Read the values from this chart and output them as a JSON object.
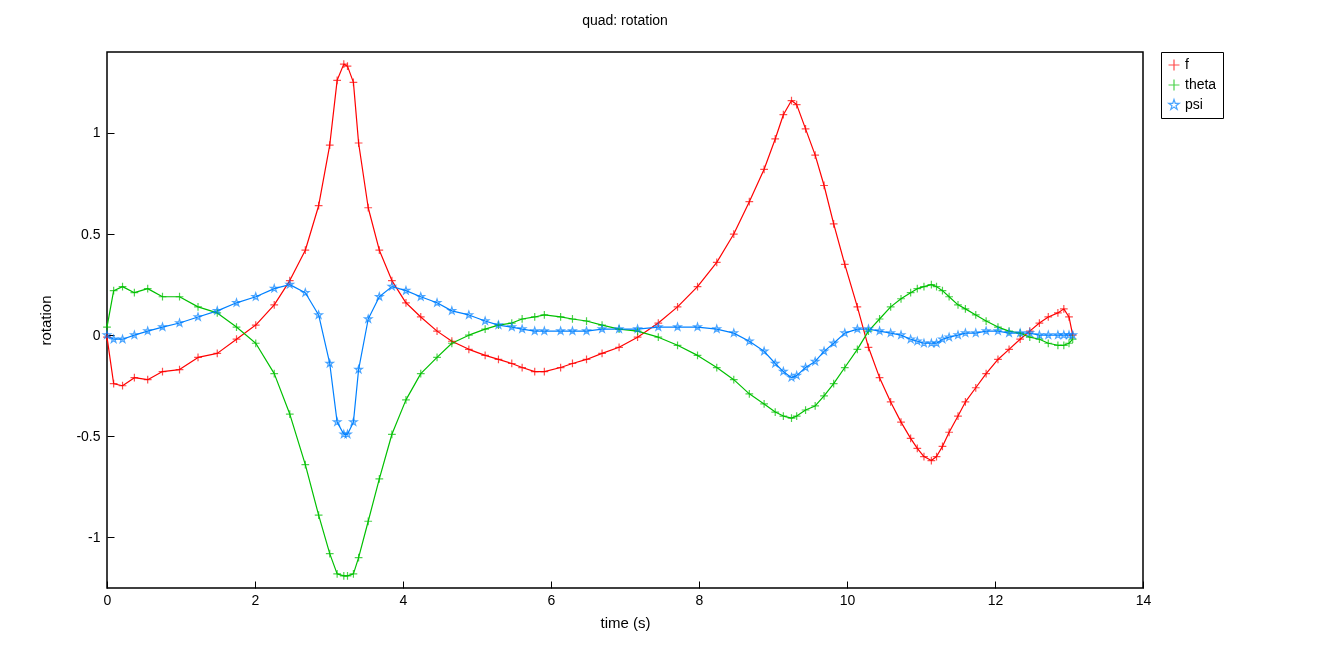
{
  "chart_data": {
    "type": "line",
    "title": "quad: rotation",
    "xlabel": "time (s)",
    "ylabel": "rotation",
    "x": [
      0,
      0.09,
      0.21,
      0.37,
      0.55,
      0.75,
      0.98,
      1.23,
      1.49,
      1.75,
      2.01,
      2.26,
      2.47,
      2.68,
      2.86,
      3.01,
      3.11,
      3.2,
      3.25,
      3.33,
      3.4,
      3.53,
      3.68,
      3.85,
      4.04,
      4.24,
      4.46,
      4.66,
      4.89,
      5.11,
      5.29,
      5.47,
      5.61,
      5.78,
      5.91,
      6.13,
      6.29,
      6.48,
      6.69,
      6.92,
      7.17,
      7.45,
      7.71,
      7.98,
      8.24,
      8.47,
      8.68,
      8.88,
      9.03,
      9.14,
      9.25,
      9.32,
      9.44,
      9.57,
      9.69,
      9.82,
      9.97,
      10.14,
      10.29,
      10.44,
      10.59,
      10.73,
      10.86,
      10.95,
      11.04,
      11.14,
      11.21,
      11.29,
      11.38,
      11.5,
      11.6,
      11.74,
      11.88,
      12.04,
      12.19,
      12.34,
      12.47,
      12.6,
      12.72,
      12.85,
      12.93,
      13,
      13.05
    ],
    "series": [
      {
        "name": "f",
        "color": "#ff0000",
        "marker": "cross",
        "values": [
          -0.01,
          -0.24,
          -0.25,
          -0.21,
          -0.22,
          -0.18,
          -0.17,
          -0.11,
          -0.09,
          -0.02,
          0.05,
          0.15,
          0.27,
          0.42,
          0.64,
          0.94,
          1.26,
          1.34,
          1.33,
          1.25,
          0.95,
          0.63,
          0.42,
          0.27,
          0.16,
          0.09,
          0.02,
          -0.03,
          -0.07,
          -0.1,
          -0.12,
          -0.14,
          -0.16,
          -0.18,
          -0.18,
          -0.16,
          -0.14,
          -0.12,
          -0.09,
          -0.06,
          -0.01,
          0.06,
          0.14,
          0.24,
          0.36,
          0.5,
          0.66,
          0.82,
          0.97,
          1.09,
          1.16,
          1.14,
          1.02,
          0.89,
          0.74,
          0.55,
          0.35,
          0.14,
          -0.06,
          -0.21,
          -0.33,
          -0.43,
          -0.51,
          -0.56,
          -0.6,
          -0.62,
          -0.6,
          -0.55,
          -0.48,
          -0.4,
          -0.33,
          -0.26,
          -0.19,
          -0.12,
          -0.07,
          -0.02,
          0.02,
          0.06,
          0.09,
          0.11,
          0.13,
          0.09,
          0
        ]
      },
      {
        "name": "theta",
        "color": "#00c000",
        "marker": "cross",
        "values": [
          0.04,
          0.22,
          0.24,
          0.21,
          0.23,
          0.19,
          0.19,
          0.14,
          0.11,
          0.04,
          -0.04,
          -0.19,
          -0.39,
          -0.64,
          -0.89,
          -1.08,
          -1.18,
          -1.19,
          -1.19,
          -1.18,
          -1.1,
          -0.92,
          -0.71,
          -0.49,
          -0.32,
          -0.19,
          -0.11,
          -0.04,
          0,
          0.03,
          0.05,
          0.06,
          0.08,
          0.09,
          0.1,
          0.09,
          0.08,
          0.07,
          0.05,
          0.03,
          0.02,
          -0.01,
          -0.05,
          -0.1,
          -0.16,
          -0.22,
          -0.29,
          -0.34,
          -0.38,
          -0.4,
          -0.41,
          -0.4,
          -0.37,
          -0.35,
          -0.3,
          -0.24,
          -0.16,
          -0.07,
          0.02,
          0.08,
          0.14,
          0.18,
          0.21,
          0.23,
          0.24,
          0.25,
          0.24,
          0.22,
          0.19,
          0.15,
          0.13,
          0.1,
          0.07,
          0.04,
          0.02,
          0.01,
          -0.01,
          -0.02,
          -0.04,
          -0.05,
          -0.05,
          -0.04,
          -0.02
        ]
      },
      {
        "name": "psi",
        "color": "#0080ff",
        "marker": "star",
        "values": [
          0,
          -0.02,
          -0.02,
          0,
          0.02,
          0.04,
          0.06,
          0.09,
          0.12,
          0.16,
          0.19,
          0.23,
          0.25,
          0.21,
          0.1,
          -0.14,
          -0.43,
          -0.49,
          -0.49,
          -0.43,
          -0.17,
          0.08,
          0.19,
          0.24,
          0.22,
          0.19,
          0.16,
          0.12,
          0.1,
          0.07,
          0.05,
          0.04,
          0.03,
          0.02,
          0.02,
          0.02,
          0.02,
          0.02,
          0.03,
          0.03,
          0.03,
          0.04,
          0.04,
          0.04,
          0.03,
          0.01,
          -0.03,
          -0.08,
          -0.14,
          -0.18,
          -0.21,
          -0.2,
          -0.16,
          -0.13,
          -0.08,
          -0.04,
          0.01,
          0.03,
          0.03,
          0.02,
          0.01,
          0,
          -0.02,
          -0.03,
          -0.04,
          -0.04,
          -0.04,
          -0.02,
          -0.01,
          0,
          0.01,
          0.01,
          0.02,
          0.02,
          0.01,
          0.01,
          0.01,
          0,
          0,
          0,
          0,
          0,
          0
        ]
      }
    ],
    "xlim": [
      0,
      14
    ],
    "xticks": [
      0,
      2,
      4,
      6,
      8,
      10,
      12,
      14
    ],
    "ylim": [
      -1.25,
      1.4
    ],
    "yticks": [
      -1,
      -0.5,
      0,
      0.5,
      1
    ],
    "legend": "top right"
  }
}
